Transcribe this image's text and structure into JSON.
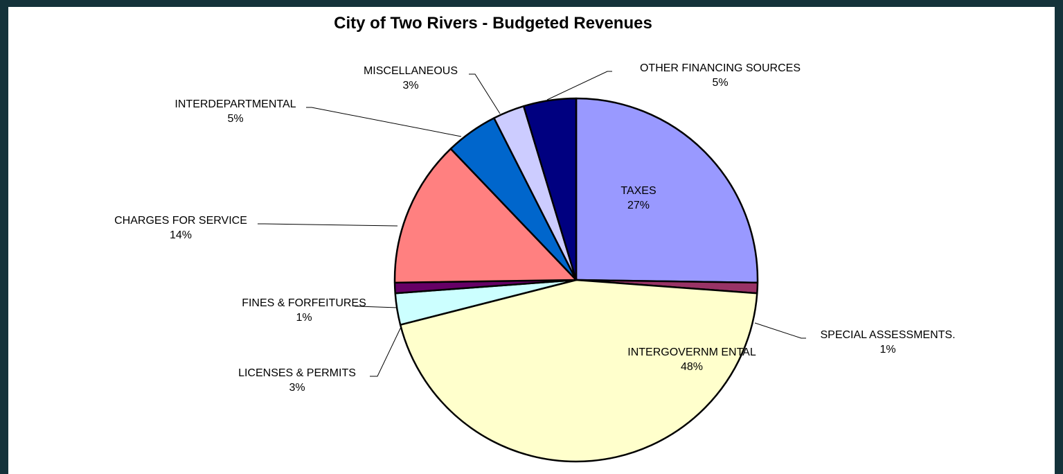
{
  "chart_data": {
    "type": "pie",
    "title": "City of Two Rivers - Budgeted Revenues",
    "slices": [
      {
        "label": "TAXES",
        "value": 27,
        "percent_label": "27%",
        "color": "#9999ff"
      },
      {
        "label": "SPECIAL ASSESSMENTS.",
        "value": 1,
        "percent_label": "1%",
        "color": "#993366"
      },
      {
        "label": "INTERGOVERNM ENTAL",
        "value": 48,
        "percent_label": "48%",
        "color": "#ffffcc"
      },
      {
        "label": "LICENSES & PERMITS",
        "value": 3,
        "percent_label": "3%",
        "color": "#ccffff"
      },
      {
        "label": "FINES & FORFEITURES",
        "value": 1,
        "percent_label": "1%",
        "color": "#660066"
      },
      {
        "label": "CHARGES FOR SERVICE",
        "value": 14,
        "percent_label": "14%",
        "color": "#ff8080"
      },
      {
        "label": "INTERDEPARTMENTAL",
        "value": 5,
        "percent_label": "5%",
        "color": "#0066cc"
      },
      {
        "label": "MISCELLANEOUS",
        "value": 3,
        "percent_label": "3%",
        "color": "#ccccff"
      },
      {
        "label": "OTHER FINANCING SOURCES",
        "value": 5,
        "percent_label": "5%",
        "color": "#000080"
      }
    ]
  }
}
